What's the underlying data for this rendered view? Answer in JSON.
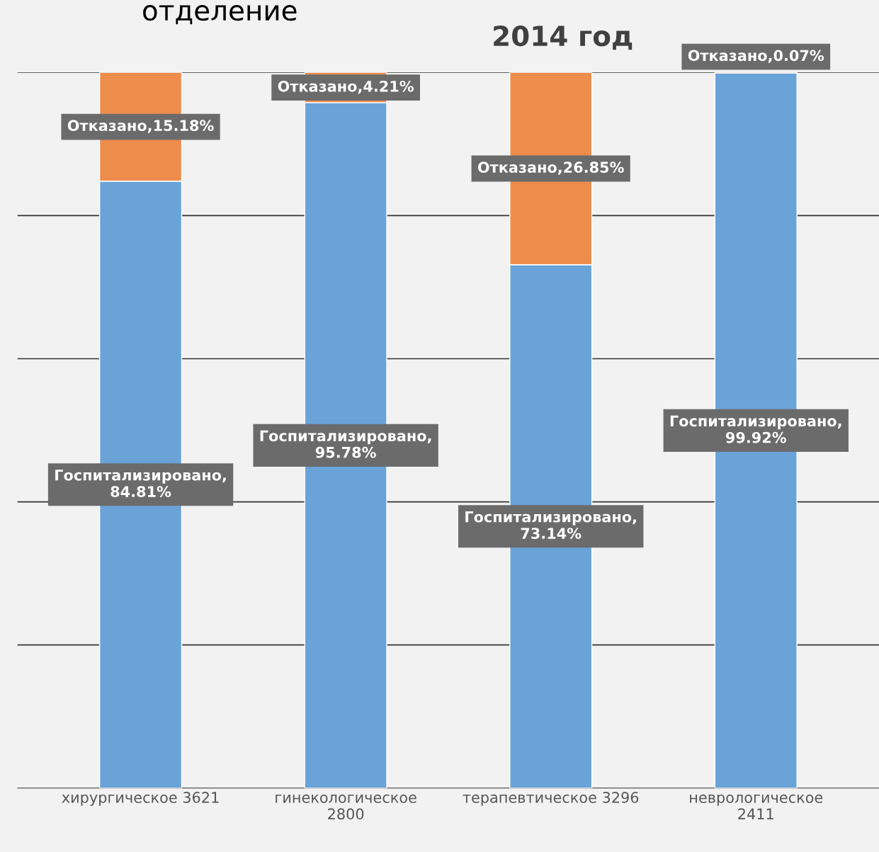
{
  "chart_data": {
    "type": "bar",
    "stacked": true,
    "title": "2014 год",
    "annotations": [
      "отделение"
    ],
    "categories": [
      "хирургическое 3621",
      "гинекологическое\n2800",
      "терапевтическое 3296",
      "неврологическое\n2411"
    ],
    "series": [
      {
        "color": "#6aa3d8",
        "values": [
          84.81,
          95.78,
          73.14,
          99.92
        ],
        "value_labels": [
          "Госпитализировано,84.81%",
          "Госпитализировано,95.78%",
          "Госпитализировано,73.14%",
          "Госпитализировано,99.92%"
        ]
      },
      {
        "color": "#ee8c4c",
        "values": [
          15.18,
          4.21,
          26.85,
          0.07
        ],
        "value_labels": [
          "Отказано,15.18%",
          "Отказано,4.21%",
          "Отказано,26.85%",
          "Отказано,0.07%"
        ]
      }
    ],
    "ylim": [
      0,
      100
    ],
    "yticks": [
      {
        "value": 0,
        "label": null
      },
      {
        "value": 20,
        "label": null
      },
      {
        "value": 40,
        "label": null
      },
      {
        "value": 60,
        "label": null
      },
      {
        "value": 80,
        "label": null
      },
      {
        "value": 100,
        "label": null
      }
    ],
    "grid": "y",
    "legend": false,
    "tick_labels": "x"
  }
}
